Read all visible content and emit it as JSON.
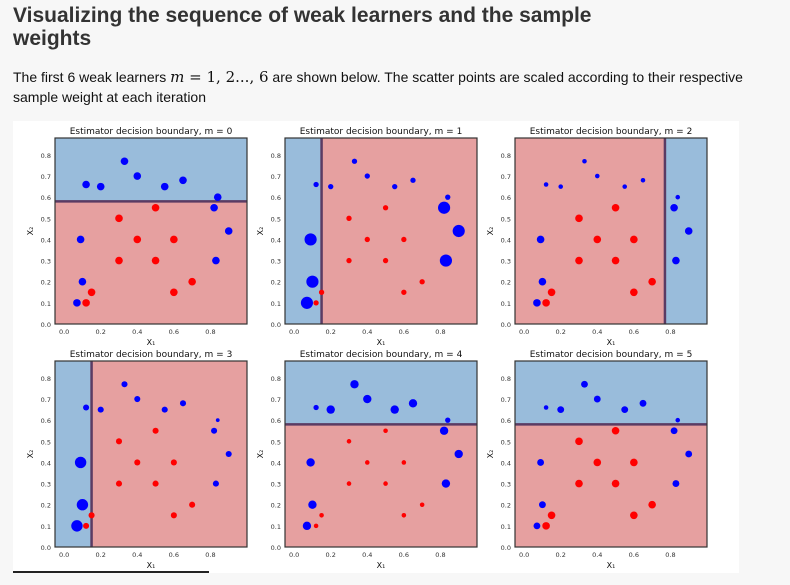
{
  "page": {
    "title": "Visualizing the sequence of weak learners and the sample weights",
    "desc_pre": "The first 6 weak learners ",
    "desc_math_var": "m",
    "desc_math_eq": " = 1, 2..., 6",
    "desc_post": " are shown below. The scatter points are scaled according to their respective sample weight at each iteration"
  },
  "colors": {
    "blue_region": "#99bcdb",
    "red_region": "#e6a0a0",
    "blue_point": "#0000ff",
    "red_point": "#ff0000",
    "boundary": "#5b3b63"
  },
  "chart_data": [
    {
      "type": "scatter",
      "title": "Estimator decision boundary, m = 0",
      "xlabel": "X₁",
      "ylabel": "X₂",
      "xlim": [
        -0.05,
        1.0
      ],
      "ylim": [
        0.0,
        0.88
      ],
      "xticks": [
        "0.0",
        "0.2",
        "0.4",
        "0.6",
        "0.8"
      ],
      "yticks": [
        "0.0",
        "0.1",
        "0.2",
        "0.3",
        "0.4",
        "0.5",
        "0.6",
        "0.7",
        "0.8"
      ],
      "split": {
        "axis": "y",
        "value": 0.58,
        "below": "red",
        "above": "blue"
      },
      "points": [
        {
          "x": 0.07,
          "y": 0.1,
          "c": "blue",
          "w": 1.0
        },
        {
          "x": 0.1,
          "y": 0.2,
          "c": "blue",
          "w": 1.0
        },
        {
          "x": 0.09,
          "y": 0.4,
          "c": "blue",
          "w": 1.0
        },
        {
          "x": 0.12,
          "y": 0.66,
          "c": "blue",
          "w": 1.0
        },
        {
          "x": 0.2,
          "y": 0.65,
          "c": "blue",
          "w": 1.0
        },
        {
          "x": 0.33,
          "y": 0.77,
          "c": "blue",
          "w": 1.0
        },
        {
          "x": 0.4,
          "y": 0.7,
          "c": "blue",
          "w": 1.0
        },
        {
          "x": 0.55,
          "y": 0.65,
          "c": "blue",
          "w": 1.0
        },
        {
          "x": 0.65,
          "y": 0.68,
          "c": "blue",
          "w": 1.0
        },
        {
          "x": 0.82,
          "y": 0.55,
          "c": "blue",
          "w": 1.0
        },
        {
          "x": 0.84,
          "y": 0.6,
          "c": "blue",
          "w": 1.0
        },
        {
          "x": 0.9,
          "y": 0.44,
          "c": "blue",
          "w": 1.0
        },
        {
          "x": 0.83,
          "y": 0.3,
          "c": "blue",
          "w": 1.0
        },
        {
          "x": 0.12,
          "y": 0.1,
          "c": "red",
          "w": 1.0
        },
        {
          "x": 0.15,
          "y": 0.15,
          "c": "red",
          "w": 1.0
        },
        {
          "x": 0.3,
          "y": 0.5,
          "c": "red",
          "w": 1.0
        },
        {
          "x": 0.3,
          "y": 0.3,
          "c": "red",
          "w": 1.0
        },
        {
          "x": 0.4,
          "y": 0.4,
          "c": "red",
          "w": 1.0
        },
        {
          "x": 0.5,
          "y": 0.55,
          "c": "red",
          "w": 1.0
        },
        {
          "x": 0.5,
          "y": 0.3,
          "c": "red",
          "w": 1.0
        },
        {
          "x": 0.6,
          "y": 0.4,
          "c": "red",
          "w": 1.0
        },
        {
          "x": 0.6,
          "y": 0.15,
          "c": "red",
          "w": 1.0
        },
        {
          "x": 0.7,
          "y": 0.2,
          "c": "red",
          "w": 1.0
        }
      ]
    },
    {
      "type": "scatter",
      "title": "Estimator decision boundary, m = 1",
      "xlabel": "X₁",
      "ylabel": "X₂",
      "xlim": [
        -0.05,
        1.0
      ],
      "ylim": [
        0.0,
        0.88
      ],
      "xticks": [
        "0.0",
        "0.2",
        "0.4",
        "0.6",
        "0.8"
      ],
      "yticks": [
        "0.0",
        "0.1",
        "0.2",
        "0.3",
        "0.4",
        "0.5",
        "0.6",
        "0.7",
        "0.8"
      ],
      "split": {
        "axis": "x",
        "value": 0.15,
        "below": "blue",
        "above": "red"
      },
      "points": [
        {
          "x": 0.07,
          "y": 0.1,
          "c": "blue",
          "w": 1.6
        },
        {
          "x": 0.1,
          "y": 0.2,
          "c": "blue",
          "w": 1.6
        },
        {
          "x": 0.09,
          "y": 0.4,
          "c": "blue",
          "w": 1.6
        },
        {
          "x": 0.12,
          "y": 0.66,
          "c": "blue",
          "w": 0.7
        },
        {
          "x": 0.2,
          "y": 0.65,
          "c": "blue",
          "w": 0.7
        },
        {
          "x": 0.33,
          "y": 0.77,
          "c": "blue",
          "w": 0.7
        },
        {
          "x": 0.4,
          "y": 0.7,
          "c": "blue",
          "w": 0.7
        },
        {
          "x": 0.55,
          "y": 0.65,
          "c": "blue",
          "w": 0.7
        },
        {
          "x": 0.65,
          "y": 0.68,
          "c": "blue",
          "w": 0.7
        },
        {
          "x": 0.82,
          "y": 0.55,
          "c": "blue",
          "w": 1.6
        },
        {
          "x": 0.84,
          "y": 0.6,
          "c": "blue",
          "w": 0.7
        },
        {
          "x": 0.9,
          "y": 0.44,
          "c": "blue",
          "w": 1.6
        },
        {
          "x": 0.83,
          "y": 0.3,
          "c": "blue",
          "w": 1.6
        },
        {
          "x": 0.12,
          "y": 0.1,
          "c": "red",
          "w": 0.7
        },
        {
          "x": 0.15,
          "y": 0.15,
          "c": "red",
          "w": 0.7
        },
        {
          "x": 0.3,
          "y": 0.5,
          "c": "red",
          "w": 0.7
        },
        {
          "x": 0.3,
          "y": 0.3,
          "c": "red",
          "w": 0.7
        },
        {
          "x": 0.4,
          "y": 0.4,
          "c": "red",
          "w": 0.7
        },
        {
          "x": 0.5,
          "y": 0.55,
          "c": "red",
          "w": 0.7
        },
        {
          "x": 0.5,
          "y": 0.3,
          "c": "red",
          "w": 0.7
        },
        {
          "x": 0.6,
          "y": 0.4,
          "c": "red",
          "w": 0.7
        },
        {
          "x": 0.6,
          "y": 0.15,
          "c": "red",
          "w": 0.7
        },
        {
          "x": 0.7,
          "y": 0.2,
          "c": "red",
          "w": 0.7
        }
      ]
    },
    {
      "type": "scatter",
      "title": "Estimator decision boundary, m = 2",
      "xlabel": "X₁",
      "ylabel": "X₂",
      "xlim": [
        -0.05,
        1.0
      ],
      "ylim": [
        0.0,
        0.88
      ],
      "xticks": [
        "0.0",
        "0.2",
        "0.4",
        "0.6",
        "0.8"
      ],
      "yticks": [
        "0.0",
        "0.1",
        "0.2",
        "0.3",
        "0.4",
        "0.5",
        "0.6",
        "0.7",
        "0.8"
      ],
      "split": {
        "axis": "x",
        "value": 0.77,
        "below": "red",
        "above": "blue"
      },
      "points": [
        {
          "x": 0.07,
          "y": 0.1,
          "c": "blue",
          "w": 1.0
        },
        {
          "x": 0.1,
          "y": 0.2,
          "c": "blue",
          "w": 1.0
        },
        {
          "x": 0.09,
          "y": 0.4,
          "c": "blue",
          "w": 1.0
        },
        {
          "x": 0.12,
          "y": 0.66,
          "c": "blue",
          "w": 0.6
        },
        {
          "x": 0.2,
          "y": 0.65,
          "c": "blue",
          "w": 0.6
        },
        {
          "x": 0.33,
          "y": 0.77,
          "c": "blue",
          "w": 0.6
        },
        {
          "x": 0.4,
          "y": 0.7,
          "c": "blue",
          "w": 0.6
        },
        {
          "x": 0.55,
          "y": 0.65,
          "c": "blue",
          "w": 0.6
        },
        {
          "x": 0.65,
          "y": 0.68,
          "c": "blue",
          "w": 0.6
        },
        {
          "x": 0.82,
          "y": 0.55,
          "c": "blue",
          "w": 1.0
        },
        {
          "x": 0.84,
          "y": 0.6,
          "c": "blue",
          "w": 0.6
        },
        {
          "x": 0.9,
          "y": 0.44,
          "c": "blue",
          "w": 1.0
        },
        {
          "x": 0.83,
          "y": 0.3,
          "c": "blue",
          "w": 1.0
        },
        {
          "x": 0.12,
          "y": 0.1,
          "c": "red",
          "w": 1.0
        },
        {
          "x": 0.15,
          "y": 0.15,
          "c": "red",
          "w": 1.0
        },
        {
          "x": 0.3,
          "y": 0.5,
          "c": "red",
          "w": 1.0
        },
        {
          "x": 0.3,
          "y": 0.3,
          "c": "red",
          "w": 1.0
        },
        {
          "x": 0.4,
          "y": 0.4,
          "c": "red",
          "w": 1.0
        },
        {
          "x": 0.5,
          "y": 0.55,
          "c": "red",
          "w": 1.0
        },
        {
          "x": 0.5,
          "y": 0.3,
          "c": "red",
          "w": 1.0
        },
        {
          "x": 0.6,
          "y": 0.4,
          "c": "red",
          "w": 1.0
        },
        {
          "x": 0.6,
          "y": 0.15,
          "c": "red",
          "w": 1.0
        },
        {
          "x": 0.7,
          "y": 0.2,
          "c": "red",
          "w": 1.0
        }
      ]
    },
    {
      "type": "scatter",
      "title": "Estimator decision boundary, m = 3",
      "xlabel": "X₁",
      "ylabel": "X₂",
      "xlim": [
        -0.05,
        1.0
      ],
      "ylim": [
        0.0,
        0.88
      ],
      "xticks": [
        "0.0",
        "0.2",
        "0.4",
        "0.6",
        "0.8"
      ],
      "yticks": [
        "0.0",
        "0.1",
        "0.2",
        "0.3",
        "0.4",
        "0.5",
        "0.6",
        "0.7",
        "0.8"
      ],
      "split": {
        "axis": "x",
        "value": 0.15,
        "below": "blue",
        "above": "red"
      },
      "points": [
        {
          "x": 0.07,
          "y": 0.1,
          "c": "blue",
          "w": 1.5
        },
        {
          "x": 0.1,
          "y": 0.2,
          "c": "blue",
          "w": 1.5
        },
        {
          "x": 0.09,
          "y": 0.4,
          "c": "blue",
          "w": 1.5
        },
        {
          "x": 0.12,
          "y": 0.66,
          "c": "blue",
          "w": 0.8
        },
        {
          "x": 0.2,
          "y": 0.65,
          "c": "blue",
          "w": 0.8
        },
        {
          "x": 0.33,
          "y": 0.77,
          "c": "blue",
          "w": 0.8
        },
        {
          "x": 0.4,
          "y": 0.7,
          "c": "blue",
          "w": 0.8
        },
        {
          "x": 0.55,
          "y": 0.65,
          "c": "blue",
          "w": 0.8
        },
        {
          "x": 0.65,
          "y": 0.68,
          "c": "blue",
          "w": 0.8
        },
        {
          "x": 0.82,
          "y": 0.55,
          "c": "blue",
          "w": 0.8
        },
        {
          "x": 0.84,
          "y": 0.6,
          "c": "blue",
          "w": 0.5
        },
        {
          "x": 0.9,
          "y": 0.44,
          "c": "blue",
          "w": 0.8
        },
        {
          "x": 0.83,
          "y": 0.3,
          "c": "blue",
          "w": 0.8
        },
        {
          "x": 0.12,
          "y": 0.1,
          "c": "red",
          "w": 0.8
        },
        {
          "x": 0.15,
          "y": 0.15,
          "c": "red",
          "w": 0.8
        },
        {
          "x": 0.3,
          "y": 0.5,
          "c": "red",
          "w": 0.8
        },
        {
          "x": 0.3,
          "y": 0.3,
          "c": "red",
          "w": 0.8
        },
        {
          "x": 0.4,
          "y": 0.4,
          "c": "red",
          "w": 0.8
        },
        {
          "x": 0.5,
          "y": 0.55,
          "c": "red",
          "w": 0.8
        },
        {
          "x": 0.5,
          "y": 0.3,
          "c": "red",
          "w": 0.8
        },
        {
          "x": 0.6,
          "y": 0.4,
          "c": "red",
          "w": 0.8
        },
        {
          "x": 0.6,
          "y": 0.15,
          "c": "red",
          "w": 0.8
        },
        {
          "x": 0.7,
          "y": 0.2,
          "c": "red",
          "w": 0.8
        }
      ]
    },
    {
      "type": "scatter",
      "title": "Estimator decision boundary, m = 4",
      "xlabel": "X₁",
      "ylabel": "X₂",
      "xlim": [
        -0.05,
        1.0
      ],
      "ylim": [
        0.0,
        0.88
      ],
      "xticks": [
        "0.0",
        "0.2",
        "0.4",
        "0.6",
        "0.8"
      ],
      "yticks": [
        "0.0",
        "0.1",
        "0.2",
        "0.3",
        "0.4",
        "0.5",
        "0.6",
        "0.7",
        "0.8"
      ],
      "split": {
        "axis": "y",
        "value": 0.58,
        "below": "red",
        "above": "blue"
      },
      "points": [
        {
          "x": 0.07,
          "y": 0.1,
          "c": "blue",
          "w": 1.1
        },
        {
          "x": 0.1,
          "y": 0.2,
          "c": "blue",
          "w": 1.1
        },
        {
          "x": 0.09,
          "y": 0.4,
          "c": "blue",
          "w": 1.1
        },
        {
          "x": 0.12,
          "y": 0.66,
          "c": "blue",
          "w": 0.7
        },
        {
          "x": 0.2,
          "y": 0.65,
          "c": "blue",
          "w": 1.1
        },
        {
          "x": 0.33,
          "y": 0.77,
          "c": "blue",
          "w": 1.1
        },
        {
          "x": 0.4,
          "y": 0.7,
          "c": "blue",
          "w": 1.1
        },
        {
          "x": 0.55,
          "y": 0.65,
          "c": "blue",
          "w": 1.1
        },
        {
          "x": 0.65,
          "y": 0.68,
          "c": "blue",
          "w": 1.1
        },
        {
          "x": 0.82,
          "y": 0.55,
          "c": "blue",
          "w": 1.1
        },
        {
          "x": 0.84,
          "y": 0.6,
          "c": "blue",
          "w": 0.7
        },
        {
          "x": 0.9,
          "y": 0.44,
          "c": "blue",
          "w": 1.1
        },
        {
          "x": 0.83,
          "y": 0.3,
          "c": "blue",
          "w": 1.1
        },
        {
          "x": 0.12,
          "y": 0.1,
          "c": "red",
          "w": 0.6
        },
        {
          "x": 0.15,
          "y": 0.15,
          "c": "red",
          "w": 0.6
        },
        {
          "x": 0.3,
          "y": 0.5,
          "c": "red",
          "w": 0.6
        },
        {
          "x": 0.3,
          "y": 0.3,
          "c": "red",
          "w": 0.6
        },
        {
          "x": 0.4,
          "y": 0.4,
          "c": "red",
          "w": 0.6
        },
        {
          "x": 0.5,
          "y": 0.55,
          "c": "red",
          "w": 0.6
        },
        {
          "x": 0.5,
          "y": 0.3,
          "c": "red",
          "w": 0.6
        },
        {
          "x": 0.6,
          "y": 0.4,
          "c": "red",
          "w": 0.6
        },
        {
          "x": 0.6,
          "y": 0.15,
          "c": "red",
          "w": 0.6
        },
        {
          "x": 0.7,
          "y": 0.2,
          "c": "red",
          "w": 0.6
        }
      ]
    },
    {
      "type": "scatter",
      "title": "Estimator decision boundary, m = 5",
      "xlabel": "X₁",
      "ylabel": "X₂",
      "xlim": [
        -0.05,
        1.0
      ],
      "ylim": [
        0.0,
        0.88
      ],
      "xticks": [
        "0.0",
        "0.2",
        "0.4",
        "0.6",
        "0.8"
      ],
      "yticks": [
        "0.0",
        "0.1",
        "0.2",
        "0.3",
        "0.4",
        "0.5",
        "0.6",
        "0.7",
        "0.8"
      ],
      "split": {
        "axis": "y",
        "value": 0.58,
        "below": "red",
        "above": "blue"
      },
      "points": [
        {
          "x": 0.07,
          "y": 0.1,
          "c": "blue",
          "w": 0.9
        },
        {
          "x": 0.1,
          "y": 0.2,
          "c": "blue",
          "w": 0.9
        },
        {
          "x": 0.09,
          "y": 0.4,
          "c": "blue",
          "w": 0.9
        },
        {
          "x": 0.12,
          "y": 0.66,
          "c": "blue",
          "w": 0.6
        },
        {
          "x": 0.2,
          "y": 0.65,
          "c": "blue",
          "w": 0.9
        },
        {
          "x": 0.33,
          "y": 0.77,
          "c": "blue",
          "w": 0.9
        },
        {
          "x": 0.4,
          "y": 0.7,
          "c": "blue",
          "w": 0.9
        },
        {
          "x": 0.55,
          "y": 0.65,
          "c": "blue",
          "w": 0.9
        },
        {
          "x": 0.65,
          "y": 0.68,
          "c": "blue",
          "w": 0.9
        },
        {
          "x": 0.82,
          "y": 0.55,
          "c": "blue",
          "w": 0.9
        },
        {
          "x": 0.84,
          "y": 0.6,
          "c": "blue",
          "w": 0.6
        },
        {
          "x": 0.9,
          "y": 0.44,
          "c": "blue",
          "w": 0.9
        },
        {
          "x": 0.83,
          "y": 0.3,
          "c": "blue",
          "w": 0.9
        },
        {
          "x": 0.12,
          "y": 0.1,
          "c": "red",
          "w": 1.0
        },
        {
          "x": 0.15,
          "y": 0.15,
          "c": "red",
          "w": 1.0
        },
        {
          "x": 0.3,
          "y": 0.5,
          "c": "red",
          "w": 1.0
        },
        {
          "x": 0.3,
          "y": 0.3,
          "c": "red",
          "w": 1.0
        },
        {
          "x": 0.4,
          "y": 0.4,
          "c": "red",
          "w": 1.0
        },
        {
          "x": 0.5,
          "y": 0.55,
          "c": "red",
          "w": 1.0
        },
        {
          "x": 0.5,
          "y": 0.3,
          "c": "red",
          "w": 1.0
        },
        {
          "x": 0.6,
          "y": 0.4,
          "c": "red",
          "w": 1.0
        },
        {
          "x": 0.6,
          "y": 0.15,
          "c": "red",
          "w": 1.0
        },
        {
          "x": 0.7,
          "y": 0.2,
          "c": "red",
          "w": 1.0
        }
      ]
    }
  ]
}
